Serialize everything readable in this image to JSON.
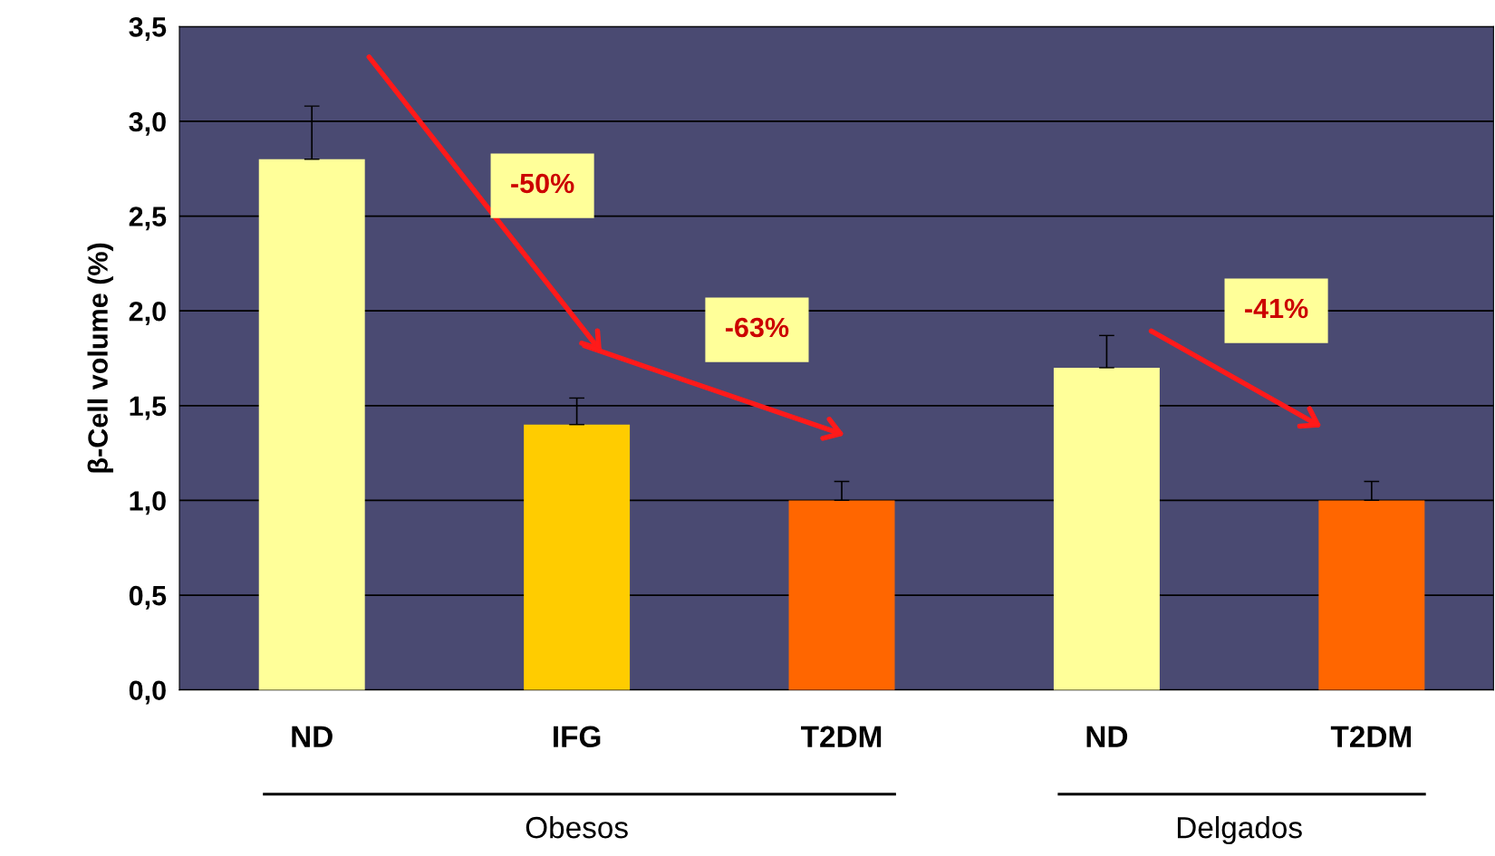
{
  "chart_data": {
    "type": "bar",
    "ylabel": "β-Cell volume (%)",
    "categories": [
      "ND",
      "IFG",
      "T2DM",
      "ND",
      "T2DM"
    ],
    "values": [
      2.8,
      1.4,
      1.0,
      1.7,
      1.0
    ],
    "colors": [
      "#ffff99",
      "#ffcc00",
      "#ff6600",
      "#ffff99",
      "#ff6600"
    ],
    "errors": [
      [
        2.8,
        3.08
      ],
      [
        1.4,
        1.54
      ],
      [
        1.0,
        1.1
      ],
      [
        1.7,
        1.87
      ],
      [
        1.0,
        1.1
      ]
    ],
    "ylim": [
      0,
      3.5
    ],
    "yticks": [
      {
        "value": 0,
        "label": "0,0"
      },
      {
        "value": 0.5,
        "label": "0,5"
      },
      {
        "value": 1,
        "label": "1,0"
      },
      {
        "value": 1.5,
        "label": "1,5"
      },
      {
        "value": 2,
        "label": "2,0"
      },
      {
        "value": 2.5,
        "label": "2,5"
      },
      {
        "value": 3,
        "label": "3,0"
      },
      {
        "value": 3.5,
        "label": "3,5"
      }
    ],
    "grid": "y",
    "annotations": [
      "-50%",
      "-63%",
      "-41%",
      "Obesos",
      "Delgados"
    ]
  }
}
